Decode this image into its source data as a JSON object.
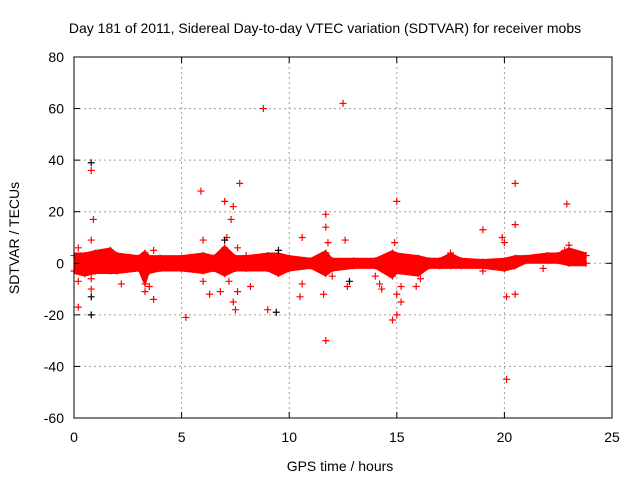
{
  "chart_data": {
    "type": "scatter",
    "title": "Day 181 of 2011, Sidereal Day-to-day VTEC variation (SDTVAR) for receiver mobs",
    "xlabel": "GPS time / hours",
    "ylabel": "SDTVAR / TECUs",
    "xlim": [
      0,
      25
    ],
    "ylim": [
      -60,
      80
    ],
    "xticks": [
      0,
      5,
      10,
      15,
      20,
      25
    ],
    "yticks": [
      -60,
      -40,
      -20,
      0,
      20,
      40,
      60,
      80
    ],
    "grid": true,
    "colors": {
      "main": "#ff0000",
      "secondary": "#000000"
    },
    "band_envelope": [
      [
        0,
        -3,
        3
      ],
      [
        0.5,
        -4,
        3
      ],
      [
        1,
        -3,
        4
      ],
      [
        1.7,
        -3,
        5
      ],
      [
        2,
        -3,
        3
      ],
      [
        3,
        -2,
        2
      ],
      [
        3.3,
        -8,
        4
      ],
      [
        3.5,
        -3,
        2
      ],
      [
        4,
        -2,
        2
      ],
      [
        5,
        -2,
        2
      ],
      [
        6,
        -3,
        3
      ],
      [
        6.5,
        -2,
        2
      ],
      [
        7,
        -4,
        6
      ],
      [
        7.5,
        -2,
        2
      ],
      [
        8,
        -2,
        2
      ],
      [
        9,
        -2,
        3
      ],
      [
        9.5,
        -4,
        3
      ],
      [
        10,
        -2,
        2
      ],
      [
        11,
        -1,
        1
      ],
      [
        11.7,
        -4,
        4
      ],
      [
        12,
        -2,
        1
      ],
      [
        13,
        -1,
        1
      ],
      [
        14,
        -1,
        1
      ],
      [
        14.8,
        -5,
        4
      ],
      [
        15,
        -3,
        3
      ],
      [
        16,
        -4,
        2
      ],
      [
        16.5,
        -1,
        1
      ],
      [
        17,
        -1,
        1
      ],
      [
        17.5,
        -1,
        3
      ],
      [
        18,
        -1,
        1
      ],
      [
        19,
        -1,
        0.5
      ],
      [
        20,
        -2,
        1
      ],
      [
        20.5,
        -1,
        2
      ],
      [
        21,
        1,
        2
      ],
      [
        22,
        1,
        3
      ],
      [
        22.5,
        1,
        3
      ],
      [
        23,
        0,
        5
      ],
      [
        23.8,
        0,
        3
      ]
    ],
    "series": [
      {
        "name": "red",
        "points": [
          [
            0.2,
            6
          ],
          [
            0.2,
            -7
          ],
          [
            0.2,
            -17
          ],
          [
            0.8,
            36
          ],
          [
            0.9,
            17
          ],
          [
            0.8,
            9
          ],
          [
            0.8,
            -6
          ],
          [
            0.8,
            -10
          ],
          [
            1.1,
            4
          ],
          [
            2.2,
            -8
          ],
          [
            3.3,
            -11
          ],
          [
            3.5,
            -9
          ],
          [
            3.7,
            5
          ],
          [
            3.7,
            -14
          ],
          [
            5.2,
            -21
          ],
          [
            5.9,
            28
          ],
          [
            6.0,
            9
          ],
          [
            6.0,
            -7
          ],
          [
            6.3,
            -12
          ],
          [
            6.8,
            -11
          ],
          [
            7.0,
            24
          ],
          [
            7.1,
            10
          ],
          [
            7.2,
            -7
          ],
          [
            7.3,
            17
          ],
          [
            7.4,
            22
          ],
          [
            7.4,
            -15
          ],
          [
            7.5,
            -18
          ],
          [
            7.6,
            6
          ],
          [
            7.6,
            -11
          ],
          [
            7.7,
            31
          ],
          [
            8.0,
            3
          ],
          [
            8.2,
            -9
          ],
          [
            8.8,
            60
          ],
          [
            9.0,
            -18
          ],
          [
            10.5,
            -13
          ],
          [
            10.6,
            10
          ],
          [
            10.6,
            -8
          ],
          [
            11.7,
            -30
          ],
          [
            11.7,
            19
          ],
          [
            11.7,
            14
          ],
          [
            11.6,
            -12
          ],
          [
            11.8,
            8
          ],
          [
            12.0,
            -5
          ],
          [
            12.5,
            62
          ],
          [
            12.6,
            9
          ],
          [
            12.7,
            -9
          ],
          [
            14.0,
            -5
          ],
          [
            14.2,
            -8
          ],
          [
            14.3,
            -10
          ],
          [
            14.8,
            -22
          ],
          [
            14.9,
            8
          ],
          [
            15.0,
            24
          ],
          [
            15.0,
            -20
          ],
          [
            15.2,
            -15
          ],
          [
            15.2,
            -9
          ],
          [
            15.0,
            -12
          ],
          [
            15.9,
            -9
          ],
          [
            16.1,
            -6
          ],
          [
            17.5,
            4
          ],
          [
            19.0,
            13
          ],
          [
            19.0,
            -3
          ],
          [
            19.9,
            10
          ],
          [
            20.0,
            8
          ],
          [
            20.1,
            -13
          ],
          [
            20.1,
            -45
          ],
          [
            20.5,
            31
          ],
          [
            20.5,
            15
          ],
          [
            20.5,
            -12
          ],
          [
            21.8,
            -2
          ],
          [
            22.9,
            23
          ],
          [
            23.0,
            7
          ],
          [
            22.8,
            5
          ]
        ]
      },
      {
        "name": "black",
        "points": [
          [
            0.8,
            39
          ],
          [
            0.8,
            -13
          ],
          [
            0.8,
            -20
          ],
          [
            9.4,
            -19
          ],
          [
            9.5,
            5
          ],
          [
            7.0,
            9
          ],
          [
            12.8,
            -7
          ]
        ]
      }
    ]
  }
}
